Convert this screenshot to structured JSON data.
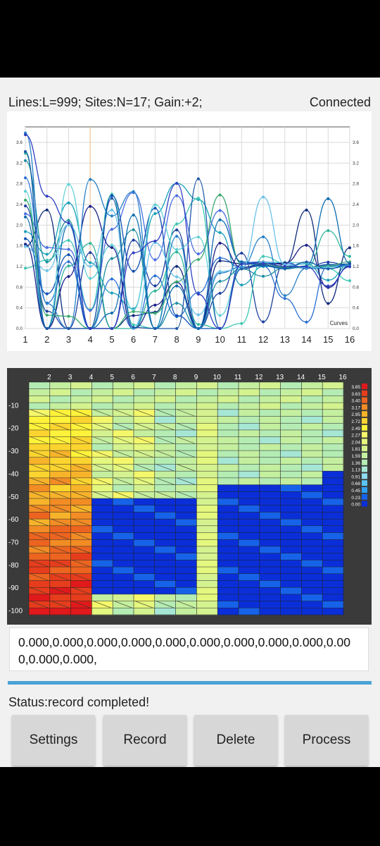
{
  "header": {
    "info": "Lines:L=999;  Sites:N=17;  Gain:+2;",
    "connection": "Connected"
  },
  "line_chart": {
    "x_ticks": [
      "1",
      "2",
      "3",
      "4",
      "5",
      "6",
      "7",
      "8",
      "9",
      "10",
      "11",
      "12",
      "13",
      "14",
      "15",
      "16"
    ],
    "y_ticks": [
      "0.0",
      "0.4",
      "0.8",
      "1.2",
      "1.6",
      "2.0",
      "2.4",
      "2.8",
      "3.2",
      "3.6"
    ],
    "legend_label": "Curves"
  },
  "contour_chart": {
    "x_ticks": [
      "2",
      "3",
      "4",
      "5",
      "6",
      "7",
      "8",
      "9",
      "10",
      "11",
      "12",
      "13",
      "14",
      "15",
      "16"
    ],
    "y_ticks": [
      "-10",
      "-20",
      "-30",
      "-40",
      "-50",
      "-60",
      "-70",
      "-80",
      "-90",
      "-100"
    ],
    "scale_labels": [
      "3.85",
      "3.63",
      "3.40",
      "3.17",
      "2.95",
      "2.72",
      "2.49",
      "2.27",
      "2.04",
      "1.81",
      "1.59",
      "1.36",
      "1.13",
      "0.91",
      "0.68",
      "0.45",
      "0.23",
      "0.00"
    ],
    "scale_colors": [
      "#e0191b",
      "#e63d1c",
      "#ec6420",
      "#f28c25",
      "#f7b32a",
      "#fbd42f",
      "#fff23a",
      "#f4f76a",
      "#e4f77e",
      "#d4f28f",
      "#c4ef9f",
      "#b4ecb4",
      "#a6e6d4",
      "#8edcf0",
      "#5ac4f5",
      "#2e9ff2",
      "#1663e9",
      "#0a2fd8"
    ]
  },
  "data_readout": "0.000,0.000,0.000,0.000,0.000,0.000,0.000,0.000,0.000,0.000,0.000,0.000,",
  "status": "Status:record completed!",
  "buttons": {
    "settings": "Settings",
    "record": "Record",
    "delete": "Delete",
    "process": "Process"
  }
}
